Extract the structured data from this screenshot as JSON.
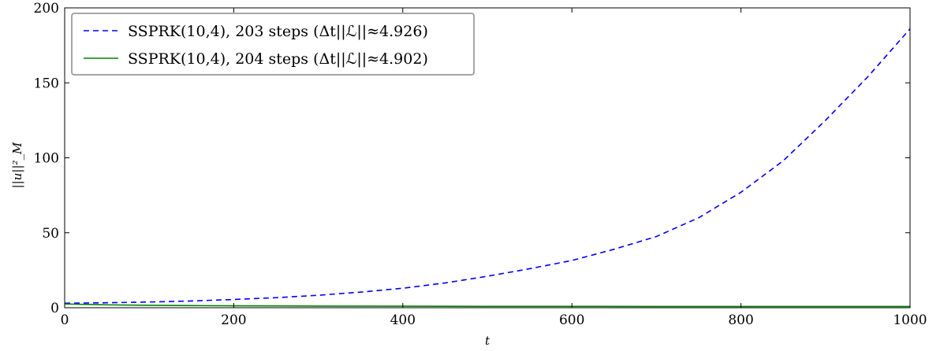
{
  "chart_data": {
    "type": "line",
    "title": "",
    "xlabel": "t",
    "ylabel": "||u||²_M",
    "xlim": [
      0,
      1000
    ],
    "ylim": [
      0,
      200
    ],
    "xticks": [
      0,
      200,
      400,
      600,
      800,
      1000
    ],
    "yticks": [
      0,
      50,
      100,
      150,
      200
    ],
    "x_tick_labels": [
      "0",
      "200",
      "400",
      "600",
      "800",
      "1000"
    ],
    "y_tick_labels": [
      "0",
      "50",
      "100",
      "150",
      "200"
    ],
    "grid": false,
    "legend_position": "top-left",
    "series": [
      {
        "name": "SSPRK(10,4), 203 steps (Δt||ℒ||≈4.926)",
        "color": "#0000ff",
        "style": "dashed",
        "x": [
          0,
          50,
          100,
          150,
          200,
          250,
          300,
          350,
          400,
          450,
          500,
          550,
          600,
          650,
          700,
          750,
          800,
          850,
          900,
          950,
          1000
        ],
        "y": [
          3,
          3.3,
          3.8,
          4.5,
          5.5,
          6.7,
          8.3,
          10.4,
          13,
          16.5,
          21,
          26,
          31.5,
          39,
          47.5,
          60,
          77,
          98,
          125,
          154,
          186
        ]
      },
      {
        "name": "SSPRK(10,4), 204 steps (Δt||ℒ||≈4.902)",
        "color": "#008000",
        "style": "solid",
        "x": [
          0,
          50,
          100,
          150,
          200,
          300,
          400,
          500,
          600,
          700,
          800,
          900,
          1000
        ],
        "y": [
          2.5,
          1.9,
          1.6,
          1.4,
          1.3,
          1.1,
          1.0,
          0.9,
          0.9,
          0.8,
          0.8,
          0.8,
          0.8
        ]
      }
    ]
  }
}
